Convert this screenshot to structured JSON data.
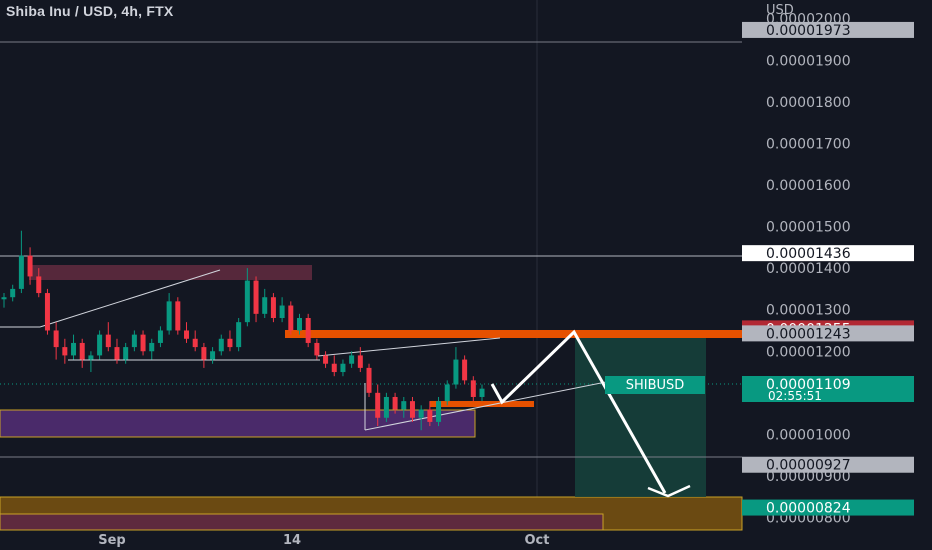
{
  "header": {
    "title": "Shiba Inu / USD, 4h, FTX"
  },
  "price_axis": {
    "unit": "USD",
    "tick_labels": [
      "0.00002000",
      "0.00001900",
      "0.00001800",
      "0.00001700",
      "0.00001600",
      "0.00001500",
      "0.00001400",
      "0.00001300",
      "0.00001200",
      "0.00001000",
      "0.00000900",
      "0.00000800"
    ],
    "tick_values": [
      2e-05,
      1.9e-05,
      1.8e-05,
      1.7e-05,
      1.6e-05,
      1.5e-05,
      1.4e-05,
      1.3e-05,
      1.2e-05,
      1e-05,
      9e-06,
      8e-06
    ]
  },
  "price_badges": [
    {
      "id": "badge-1973",
      "label": "0.00001973",
      "value": 1.973e-05,
      "bg": "#b2b5be",
      "fg": "#131722"
    },
    {
      "id": "badge-1436",
      "label": "0.00001436",
      "value": 1.436e-05,
      "bg": "#ffffff",
      "fg": "#131722"
    },
    {
      "id": "badge-1255",
      "label": "0.00001255",
      "value": 1.255e-05,
      "bg": "#b22833",
      "fg": "#ffffff"
    },
    {
      "id": "badge-1243",
      "label": "0.00001243",
      "value": 1.243e-05,
      "bg": "#b2b5be",
      "fg": "#131722"
    },
    {
      "id": "badge-927",
      "label": "0.00000927",
      "value": 9.27e-06,
      "bg": "#b2b5be",
      "fg": "#131722"
    },
    {
      "id": "badge-824",
      "label": "0.00000824",
      "value": 8.24e-06,
      "bg": "#089981",
      "fg": "#ffffff"
    }
  ],
  "current_price": {
    "symbol": "SHIBUSD",
    "price": "0.00001109",
    "value": 1.109e-05,
    "countdown": "02:55:51",
    "color": "#089981"
  },
  "time_axis": {
    "labels": [
      "Sep",
      "14",
      "Oct"
    ]
  },
  "colors": {
    "background": "#131722",
    "up": "#089981",
    "down": "#f23645",
    "resistance": "#e65100",
    "support_zone": "#4a2a6a",
    "target_zone": "#6b4a12"
  },
  "chart_data": {
    "type": "candlestick",
    "title": "Shiba Inu / USD, 4h, FTX",
    "ylim": [
      7.7e-06,
      2.045e-05
    ],
    "ohlc_4h_path": [
      [
        1.325e-05,
        1.34e-05,
        1.305e-05,
        1.33e-05
      ],
      [
        1.33e-05,
        1.36e-05,
        1.32e-05,
        1.35e-05
      ],
      [
        1.35e-05,
        1.49e-05,
        1.34e-05,
        1.43e-05
      ],
      [
        1.43e-05,
        1.45e-05,
        1.36e-05,
        1.38e-05
      ],
      [
        1.38e-05,
        1.4e-05,
        1.33e-05,
        1.34e-05
      ],
      [
        1.34e-05,
        1.35e-05,
        1.24e-05,
        1.25e-05
      ],
      [
        1.25e-05,
        1.27e-05,
        1.18e-05,
        1.21e-05
      ],
      [
        1.21e-05,
        1.23e-05,
        1.17e-05,
        1.19e-05
      ],
      [
        1.19e-05,
        1.24e-05,
        1.18e-05,
        1.22e-05
      ],
      [
        1.22e-05,
        1.23e-05,
        1.16e-05,
        1.18e-05
      ],
      [
        1.18e-05,
        1.2e-05,
        1.15e-05,
        1.19e-05
      ],
      [
        1.19e-05,
        1.25e-05,
        1.18e-05,
        1.24e-05
      ],
      [
        1.24e-05,
        1.27e-05,
        1.2e-05,
        1.21e-05
      ],
      [
        1.21e-05,
        1.23e-05,
        1.17e-05,
        1.18e-05
      ],
      [
        1.18e-05,
        1.22e-05,
        1.17e-05,
        1.21e-05
      ],
      [
        1.21e-05,
        1.25e-05,
        1.2e-05,
        1.24e-05
      ],
      [
        1.24e-05,
        1.25e-05,
        1.19e-05,
        1.2e-05
      ],
      [
        1.2e-05,
        1.23e-05,
        1.18e-05,
        1.22e-05
      ],
      [
        1.22e-05,
        1.26e-05,
        1.21e-05,
        1.25e-05
      ],
      [
        1.25e-05,
        1.34e-05,
        1.24e-05,
        1.32e-05
      ],
      [
        1.32e-05,
        1.33e-05,
        1.24e-05,
        1.25e-05
      ],
      [
        1.25e-05,
        1.27e-05,
        1.22e-05,
        1.23e-05
      ],
      [
        1.23e-05,
        1.25e-05,
        1.2e-05,
        1.21e-05
      ],
      [
        1.21e-05,
        1.22e-05,
        1.16e-05,
        1.18e-05
      ],
      [
        1.18e-05,
        1.21e-05,
        1.17e-05,
        1.2e-05
      ],
      [
        1.2e-05,
        1.24e-05,
        1.19e-05,
        1.23e-05
      ],
      [
        1.23e-05,
        1.25e-05,
        1.2e-05,
        1.21e-05
      ],
      [
        1.21e-05,
        1.28e-05,
        1.2e-05,
        1.27e-05
      ],
      [
        1.27e-05,
        1.4e-05,
        1.26e-05,
        1.37e-05
      ],
      [
        1.37e-05,
        1.38e-05,
        1.27e-05,
        1.29e-05
      ],
      [
        1.29e-05,
        1.35e-05,
        1.28e-05,
        1.33e-05
      ],
      [
        1.33e-05,
        1.34e-05,
        1.27e-05,
        1.28e-05
      ],
      [
        1.28e-05,
        1.33e-05,
        1.27e-05,
        1.31e-05
      ],
      [
        1.31e-05,
        1.32e-05,
        1.24e-05,
        1.25e-05
      ],
      [
        1.25e-05,
        1.29e-05,
        1.24e-05,
        1.28e-05
      ],
      [
        1.28e-05,
        1.29e-05,
        1.21e-05,
        1.22e-05
      ],
      [
        1.22e-05,
        1.23e-05,
        1.18e-05,
        1.19e-05
      ],
      [
        1.19e-05,
        1.2e-05,
        1.16e-05,
        1.17e-05
      ],
      [
        1.17e-05,
        1.19e-05,
        1.14e-05,
        1.15e-05
      ],
      [
        1.15e-05,
        1.18e-05,
        1.14e-05,
        1.17e-05
      ],
      [
        1.17e-05,
        1.2e-05,
        1.16e-05,
        1.19e-05
      ],
      [
        1.19e-05,
        1.21e-05,
        1.15e-05,
        1.16e-05
      ],
      [
        1.16e-05,
        1.17e-05,
        1.09e-05,
        1.1e-05
      ],
      [
        1.1e-05,
        1.12e-05,
        1.02e-05,
        1.04e-05
      ],
      [
        1.04e-05,
        1.1e-05,
        1.03e-05,
        1.09e-05
      ],
      [
        1.09e-05,
        1.1e-05,
        1.05e-05,
        1.06e-05
      ],
      [
        1.06e-05,
        1.09e-05,
        1.04e-05,
        1.08e-05
      ],
      [
        1.08e-05,
        1.09e-05,
        1.03e-05,
        1.04e-05
      ],
      [
        1.04e-05,
        1.07e-05,
        1.01e-05,
        1.06e-05
      ],
      [
        1.06e-05,
        1.08e-05,
        1.02e-05,
        1.03e-05
      ],
      [
        1.03e-05,
        1.09e-05,
        1.02e-05,
        1.08e-05
      ],
      [
        1.08e-05,
        1.13e-05,
        1.07e-05,
        1.12e-05
      ],
      [
        1.12e-05,
        1.21e-05,
        1.11e-05,
        1.18e-05
      ],
      [
        1.18e-05,
        1.19e-05,
        1.12e-05,
        1.13e-05
      ],
      [
        1.13e-05,
        1.14e-05,
        1.08e-05,
        1.09e-05
      ],
      [
        1.09e-05,
        1.12e-05,
        1.08e-05,
        1.11e-05
      ]
    ],
    "levels": [
      1.973e-05,
      1.436e-05,
      1.255e-05,
      1.243e-05,
      9.27e-06,
      8.24e-06
    ],
    "zones": {
      "resistance": [
        1.235e-05,
        1.255e-05
      ],
      "support_purple": [
        9.7e-06,
        1.04e-05
      ],
      "target_brown": [
        7.7e-06,
        8.24e-06
      ],
      "early_range": [
        1.37e-05,
        1.41e-05
      ],
      "buy_box": [
        1.05e-05,
        1.07e-05
      ]
    }
  }
}
